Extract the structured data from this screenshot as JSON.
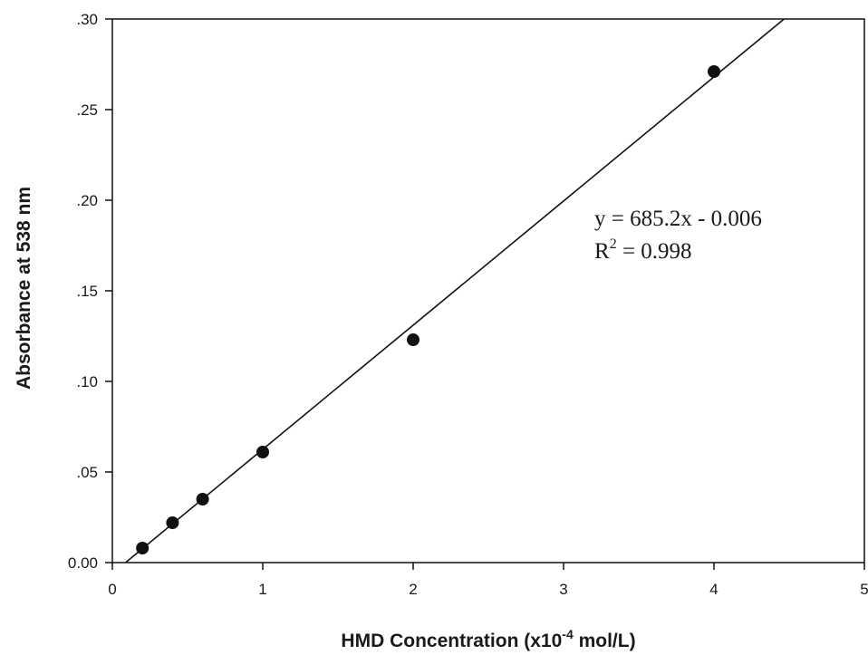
{
  "chart_data": {
    "type": "scatter",
    "title": "",
    "xlabel": "HMD Concentration (x10",
    "xlabel_sup": "-4",
    "xlabel_suffix": " mol/L)",
    "ylabel": "Absorbance at 538 nm",
    "xlim": [
      0,
      5
    ],
    "ylim": [
      0,
      0.3
    ],
    "x_ticks": [
      0,
      1,
      2,
      3,
      4,
      5
    ],
    "x_tick_labels": [
      "0",
      "1",
      "2",
      "3",
      "4",
      "5"
    ],
    "y_ticks": [
      0,
      0.05,
      0.1,
      0.15,
      0.2,
      0.25,
      0.3
    ],
    "y_tick_labels": [
      "0.00",
      ".05",
      ".10",
      ".15",
      ".20",
      ".25",
      ".30"
    ],
    "grid": false,
    "legend": "none",
    "series": [
      {
        "x": [
          0.2,
          0.4,
          0.6,
          1.0,
          2.0,
          4.0
        ],
        "y": [
          0.008,
          0.022,
          0.035,
          0.061,
          0.123,
          0.271
        ]
      }
    ],
    "fit_line": {
      "slope": 685.2,
      "intercept": -0.006,
      "scale_x": 0.0001,
      "x_unit_note": "x values in units of 1e-4 mol/L"
    },
    "annotations": {
      "equation": "y = 685.2x - 0.006",
      "r2_prefix": "R",
      "r2_sup": "2",
      "r2_value": " = 0.998"
    },
    "colors": {
      "marker": "#111111",
      "line": "#111111",
      "axis": "#111111"
    }
  }
}
